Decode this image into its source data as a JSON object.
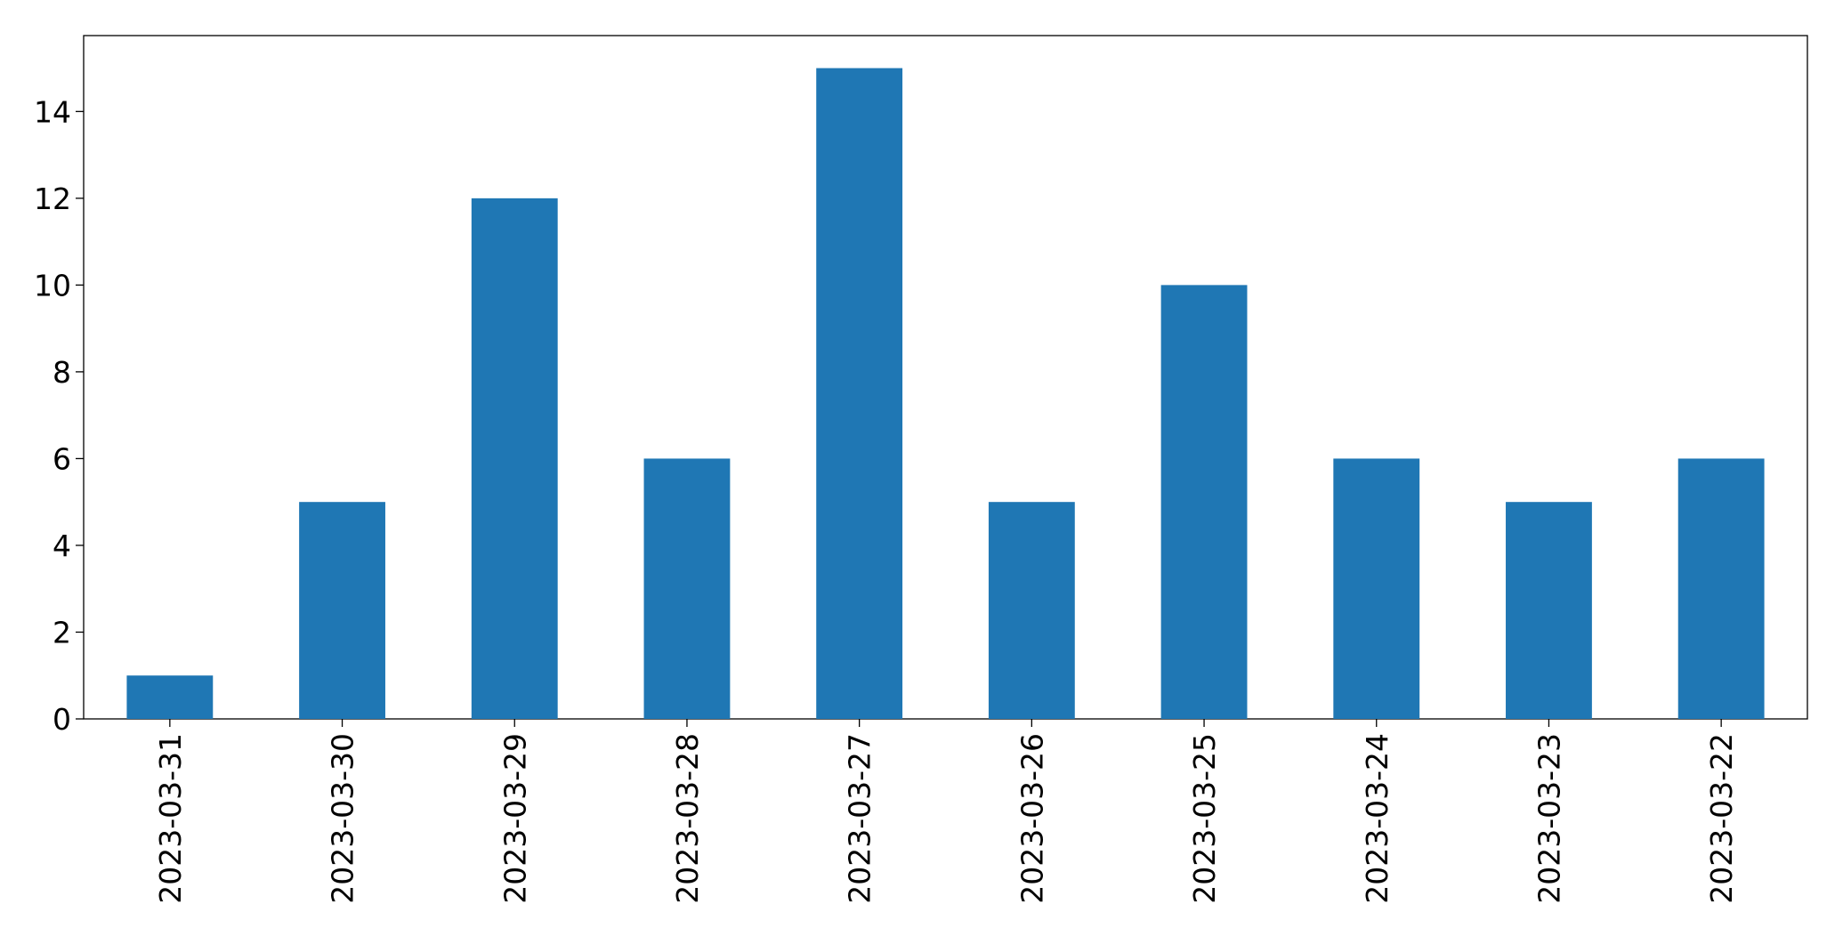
{
  "chart_data": {
    "type": "bar",
    "categories": [
      "2023-03-31",
      "2023-03-30",
      "2023-03-29",
      "2023-03-28",
      "2023-03-27",
      "2023-03-26",
      "2023-03-25",
      "2023-03-24",
      "2023-03-23",
      "2023-03-22"
    ],
    "values": [
      1,
      5,
      12,
      6,
      15,
      5,
      10,
      6,
      5,
      6
    ],
    "color": "#1f77b4",
    "ylim": [
      0,
      15.75
    ],
    "yticks": [
      0,
      2,
      4,
      6,
      8,
      10,
      12,
      14
    ],
    "grid": false
  }
}
